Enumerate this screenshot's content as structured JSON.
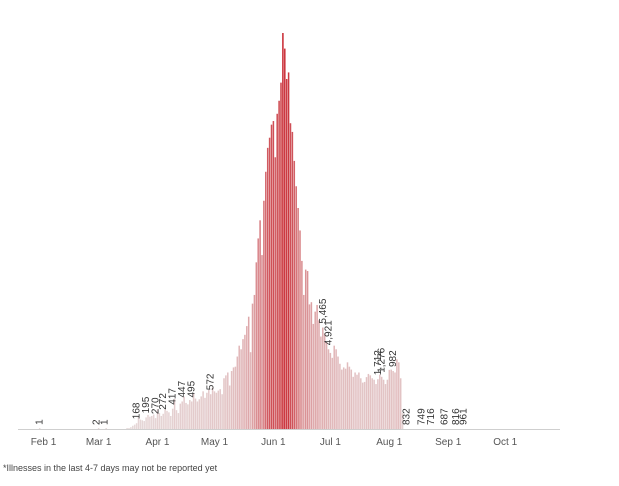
{
  "chart_data": {
    "type": "bar",
    "x_start": "2020-01-22",
    "xlabel": "",
    "ylabel": "",
    "ylim": [
      0,
      5600
    ],
    "grid": false,
    "colors": {
      "low": "#e6dada",
      "high": "#c8262f",
      "axis": "#cfcfcf"
    },
    "xticks": [
      {
        "label": "Feb 1",
        "date": "2020-02-01"
      },
      {
        "label": "Mar 1",
        "date": "2020-03-01"
      },
      {
        "label": "Apr 1",
        "date": "2020-04-01"
      },
      {
        "label": "May 1",
        "date": "2020-05-01"
      },
      {
        "label": "Jun 1",
        "date": "2020-06-01"
      },
      {
        "label": "Jul 1",
        "date": "2020-07-01"
      },
      {
        "label": "Aug 1",
        "date": "2020-08-01"
      },
      {
        "label": "Sep 1",
        "date": "2020-09-01"
      },
      {
        "label": "Oct 1",
        "date": "2020-10-01"
      }
    ],
    "values": [
      0,
      0,
      0,
      0,
      0,
      0,
      0,
      0,
      1,
      0,
      0,
      0,
      0,
      0,
      0,
      0,
      0,
      0,
      0,
      0,
      0,
      0,
      0,
      0,
      0,
      0,
      0,
      0,
      0,
      0,
      0,
      0,
      0,
      0,
      0,
      0,
      0,
      0,
      0,
      2,
      0,
      0,
      0,
      1,
      0,
      0,
      0,
      0,
      0,
      0,
      0,
      0,
      0,
      0,
      5,
      12,
      25,
      45,
      60,
      80,
      168,
      130,
      120,
      110,
      160,
      195,
      170,
      180,
      200,
      150,
      270,
      220,
      180,
      210,
      272,
      250,
      230,
      180,
      280,
      417,
      260,
      220,
      350,
      380,
      447,
      360,
      340,
      400,
      380,
      495,
      420,
      380,
      410,
      450,
      520,
      430,
      500,
      540,
      480,
      572,
      520,
      500,
      530,
      550,
      480,
      700,
      740,
      780,
      600,
      800,
      850,
      860,
      1000,
      1150,
      1100,
      1240,
      1300,
      1420,
      1550,
      1060,
      1730,
      1850,
      2300,
      2630,
      2880,
      2400,
      3150,
      3550,
      3880,
      4020,
      4200,
      4250,
      3750,
      4350,
      4530,
      4780,
      5465,
      5250,
      4830,
      4921,
      4220,
      4100,
      3700,
      3350,
      3050,
      2740,
      2320,
      1850,
      2200,
      2180,
      1720,
      1750,
      1450,
      1620,
      1712,
      1500,
      1276,
      1400,
      1320,
      1200,
      1100,
      1050,
      982,
      1150,
      1100,
      1000,
      900,
      820,
      850,
      832,
      920,
      860,
      820,
      720,
      780,
      749,
      780,
      700,
      640,
      650,
      716,
      760,
      740,
      700,
      680,
      620,
      687,
      750,
      720,
      680,
      620,
      680,
      816,
      820,
      800,
      780,
      961,
      920,
      700,
      220
    ]
  },
  "annotations": [
    {
      "date": "2020-01-30",
      "text": "1"
    },
    {
      "date": "2020-02-29",
      "text": "2"
    },
    {
      "date": "2020-03-04",
      "text": "1"
    },
    {
      "date": "2020-03-21",
      "text": "168"
    },
    {
      "date": "2020-03-26",
      "text": "195"
    },
    {
      "date": "2020-03-31",
      "text": "270"
    },
    {
      "date": "2020-04-04",
      "text": "272"
    },
    {
      "date": "2020-04-09",
      "text": "417"
    },
    {
      "date": "2020-04-14",
      "text": "447"
    },
    {
      "date": "2020-04-19",
      "text": "495"
    },
    {
      "date": "2020-04-29",
      "text": "572"
    },
    {
      "date": "2020-06-27",
      "text": "5,465"
    },
    {
      "date": "2020-06-30",
      "text": "4,921"
    },
    {
      "date": "2020-07-26",
      "text": "1,712"
    },
    {
      "date": "2020-07-28",
      "text": "1,276"
    },
    {
      "date": "2020-08-03",
      "text": "982"
    },
    {
      "date": "2020-08-10",
      "text": "832"
    },
    {
      "date": "2020-08-18",
      "text": "749"
    },
    {
      "date": "2020-08-23",
      "text": "716"
    },
    {
      "date": "2020-08-30",
      "text": "687"
    },
    {
      "date": "2020-09-05",
      "text": "816"
    },
    {
      "date": "2020-09-09",
      "text": "961"
    }
  ],
  "footnote": "*Illnesses in the last 4-7 days may not be reported yet"
}
